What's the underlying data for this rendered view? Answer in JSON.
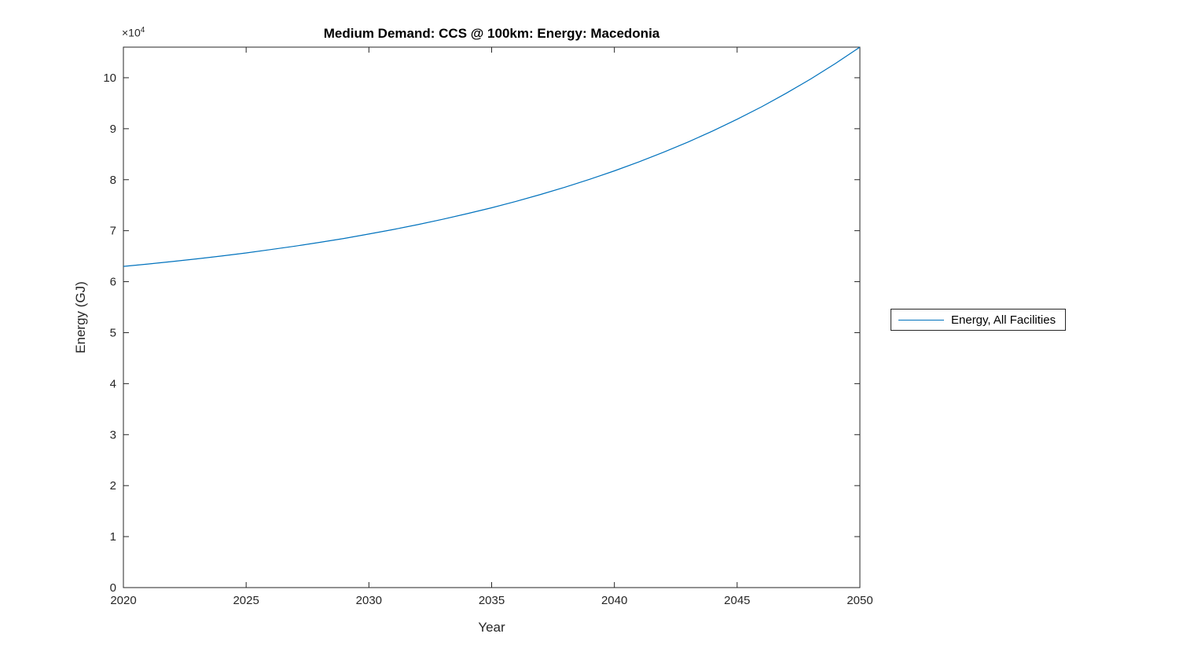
{
  "title": "Medium Demand: CCS @ 100km: Energy: Macedonia",
  "axes": {
    "xlabel": "Year",
    "ylabel": "Energy (GJ)",
    "y_multiplier_base": "×10",
    "y_multiplier_exp": "4"
  },
  "legend": {
    "items": [
      {
        "label": "Energy, All Facilities",
        "color": "#0072BD"
      }
    ]
  },
  "colors": {
    "line": "#0072BD",
    "axis": "#262626",
    "text": "#262626"
  },
  "chart_data": {
    "type": "line",
    "title": "Medium Demand: CCS @ 100km: Energy: Macedonia",
    "xlabel": "Year",
    "ylabel": "Energy (GJ)",
    "y_axis_multiplier": "×10^4",
    "grid": false,
    "legend_position": "right-outside",
    "xlim": [
      2020,
      2050
    ],
    "ylim": [
      0,
      106000
    ],
    "x_ticks": [
      2020,
      2025,
      2030,
      2035,
      2040,
      2045,
      2050
    ],
    "y_ticks": [
      0,
      10000,
      20000,
      30000,
      40000,
      50000,
      60000,
      70000,
      80000,
      90000,
      100000
    ],
    "y_tick_labels": [
      "0",
      "1",
      "2",
      "3",
      "4",
      "5",
      "6",
      "7",
      "8",
      "9",
      "10"
    ],
    "series": [
      {
        "name": "Energy, All Facilities",
        "color": "#0072BD",
        "x": [
          2020,
          2021,
          2022,
          2023,
          2024,
          2025,
          2026,
          2027,
          2028,
          2029,
          2030,
          2031,
          2032,
          2033,
          2034,
          2035,
          2036,
          2037,
          2038,
          2039,
          2040,
          2041,
          2042,
          2043,
          2044,
          2045,
          2046,
          2047,
          2048,
          2049,
          2050
        ],
        "values": [
          63000,
          63460,
          63950,
          64480,
          65040,
          65640,
          66290,
          66970,
          67710,
          68490,
          69340,
          70240,
          71200,
          72230,
          73330,
          74500,
          75760,
          77110,
          78550,
          80090,
          81730,
          83490,
          85380,
          87390,
          89540,
          91850,
          94310,
          96950,
          99760,
          102780,
          106000
        ]
      }
    ]
  }
}
